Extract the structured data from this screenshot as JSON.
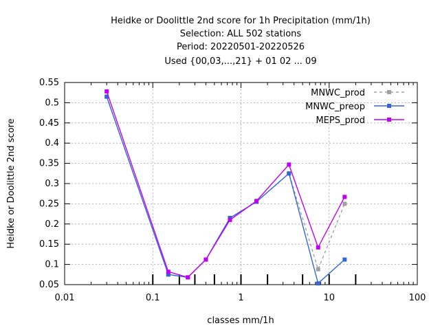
{
  "chart_data": {
    "type": "line",
    "title_lines": [
      "Heidke or Doolittle 2nd score  for 1h Precipitation (mm/1h)",
      "Selection: ALL    502 stations",
      "Period: 20220501-20220526",
      "Used {00,03,...,21} + 01 02 ... 09"
    ],
    "xlabel": "classes mm/1h",
    "ylabel": "Heidke or Doolittle 2nd score",
    "xscale": "log",
    "xlim": [
      0.01,
      100
    ],
    "ylim": [
      0.05,
      0.55
    ],
    "xticks": [
      0.01,
      0.1,
      1,
      10,
      100
    ],
    "xtick_labels": [
      "0.01",
      "0.1",
      "1",
      "10",
      "100"
    ],
    "yticks": [
      0.05,
      0.1,
      0.15,
      0.2,
      0.25,
      0.3,
      0.35,
      0.4,
      0.45,
      0.5,
      0.55
    ],
    "ytick_labels": [
      "0.05",
      "0.1",
      "0.15",
      "0.2",
      "0.25",
      "0.3",
      "0.35",
      "0.4",
      "0.45",
      "0.5",
      "0.55"
    ],
    "class_marks": [
      0.1,
      0.2,
      0.3,
      0.5,
      1,
      2,
      5,
      10,
      20
    ],
    "grid": true,
    "legend_position": "top-right",
    "x": [
      0.03,
      0.15,
      0.25,
      0.4,
      0.75,
      1.5,
      3.5,
      7.5,
      15
    ],
    "series": [
      {
        "name": "MNWC_prod",
        "color": "#a0a0a0",
        "dashed": true,
        "values": [
          0.515,
          0.075,
          0.068,
          0.112,
          0.215,
          0.255,
          0.325,
          0.088,
          0.25
        ]
      },
      {
        "name": "MNWC_preop",
        "color": "#3465d6",
        "dashed": false,
        "values": [
          0.515,
          0.075,
          0.068,
          0.112,
          0.215,
          0.255,
          0.325,
          0.053,
          0.112
        ]
      },
      {
        "name": "MEPS_prod",
        "color": "#c000f0",
        "dashed": false,
        "values": [
          0.528,
          0.082,
          0.068,
          0.112,
          0.21,
          0.257,
          0.347,
          0.142,
          0.267
        ]
      }
    ]
  }
}
